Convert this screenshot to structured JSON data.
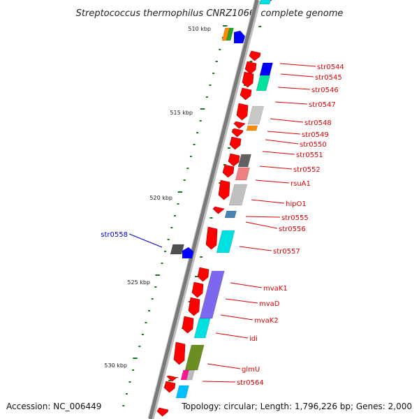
{
  "title": "Streptococcus thermophilus CNRZ1066, complete genome",
  "accession": "Accession: NC_006449",
  "topology": "Topology: circular; Length: 1,796,226 bp; Genes: 2,000",
  "colors": {
    "backbone": "#808080",
    "tick": "#1a7a1a",
    "label_forward": "#dd0000",
    "label_reverse": "#0000cc",
    "gene_arrow": "#ff0000"
  },
  "scale_labels": [
    "510 kbp",
    "515 kbp",
    "520 kbp",
    "525 kbp",
    "530 kbp"
  ],
  "gene_labels": [
    {
      "text": "str0544",
      "strand": "forward"
    },
    {
      "text": "str0545",
      "strand": "forward"
    },
    {
      "text": "str0546",
      "strand": "forward"
    },
    {
      "text": "str0547",
      "strand": "forward"
    },
    {
      "text": "str0548",
      "strand": "forward"
    },
    {
      "text": "str0549",
      "strand": "forward"
    },
    {
      "text": "str0550",
      "strand": "forward"
    },
    {
      "text": "str0551",
      "strand": "forward"
    },
    {
      "text": "str0552",
      "strand": "forward"
    },
    {
      "text": "rsuA1",
      "strand": "forward"
    },
    {
      "text": "hipO1",
      "strand": "forward"
    },
    {
      "text": "str0555",
      "strand": "forward"
    },
    {
      "text": "str0556",
      "strand": "forward"
    },
    {
      "text": "str0557",
      "strand": "forward"
    },
    {
      "text": "str0558",
      "strand": "reverse"
    },
    {
      "text": "mvaK1",
      "strand": "forward"
    },
    {
      "text": "mvaD",
      "strand": "forward"
    },
    {
      "text": "mvaK2",
      "strand": "forward"
    },
    {
      "text": "idi",
      "strand": "forward"
    },
    {
      "text": "glmU",
      "strand": "forward"
    },
    {
      "text": "str0564",
      "strand": "forward"
    }
  ]
}
